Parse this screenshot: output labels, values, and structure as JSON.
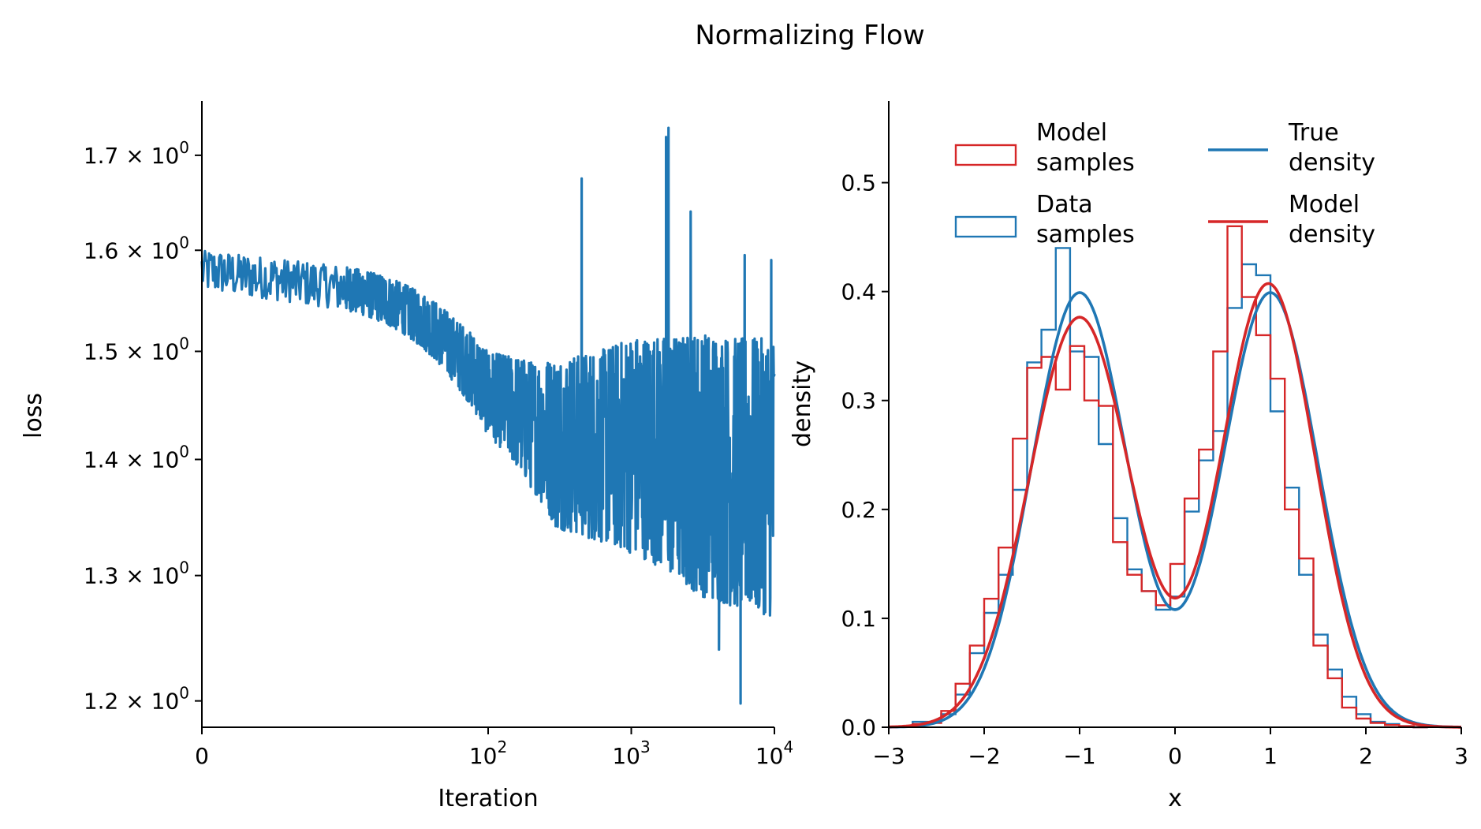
{
  "figure": {
    "title": "Normalizing Flow"
  },
  "colors": {
    "blue": "#1f77b4",
    "red": "#d62728",
    "axis": "#000000"
  },
  "chart_data": [
    {
      "type": "line",
      "title": "",
      "xlabel": "Iteration",
      "ylabel": "loss",
      "xscale": "symlog",
      "yscale": "log",
      "xlim": [
        0,
        10000
      ],
      "ylim": [
        1.18,
        1.76
      ],
      "xticks": [
        {
          "value": 0,
          "base": "0",
          "exp": ""
        },
        {
          "value": 100,
          "base": "10",
          "exp": "2"
        },
        {
          "value": 1000,
          "base": "10",
          "exp": "3"
        },
        {
          "value": 10000,
          "base": "10",
          "exp": "4"
        }
      ],
      "yticks": [
        {
          "value": 1.2,
          "label": "1.2 × 10",
          "exp": "0"
        },
        {
          "value": 1.3,
          "label": "1.3 × 10",
          "exp": "0"
        },
        {
          "value": 1.4,
          "label": "1.4 × 10",
          "exp": "0"
        },
        {
          "value": 1.5,
          "label": "1.5 × 10",
          "exp": "0"
        },
        {
          "value": 1.6,
          "label": "1.6 × 10",
          "exp": "0"
        },
        {
          "value": 1.7,
          "label": "1.7 × 10",
          "exp": "0"
        }
      ],
      "series": [
        {
          "color": "#1f77b4",
          "trend": [
            [
              0,
              1.58
            ],
            [
              10,
              1.55
            ],
            [
              30,
              1.52
            ],
            [
              60,
              1.48
            ],
            [
              100,
              1.46
            ],
            [
              200,
              1.42
            ],
            [
              500,
              1.4
            ],
            [
              1000,
              1.39
            ],
            [
              2000,
              1.37
            ],
            [
              5000,
              1.35
            ],
            [
              10000,
              1.35
            ]
          ],
          "noise_min": [
            [
              0,
              1.55
            ],
            [
              100,
              1.4
            ],
            [
              300,
              1.3
            ],
            [
              1000,
              1.28
            ],
            [
              3000,
              1.24
            ],
            [
              10000,
              1.22
            ]
          ],
          "noise_max": [
            [
              0,
              1.61
            ],
            [
              100,
              1.52
            ],
            [
              500,
              1.55
            ],
            [
              1000,
              1.58
            ],
            [
              3000,
              1.6
            ],
            [
              10000,
              1.6
            ]
          ],
          "spikes": [
            [
              450,
              1.675
            ],
            [
              1750,
              1.72
            ],
            [
              1820,
              1.73
            ],
            [
              2600,
              1.64
            ],
            [
              9500,
              1.59
            ],
            [
              6200,
              1.595
            ],
            [
              5800,
              1.198
            ],
            [
              4100,
              1.24
            ]
          ]
        }
      ]
    },
    {
      "type": "histogram+line",
      "title": "",
      "xlabel": "x",
      "ylabel": "density",
      "xlim": [
        -3,
        3
      ],
      "ylim": [
        0,
        0.575
      ],
      "xticks": [
        {
          "value": -3,
          "label": "−3"
        },
        {
          "value": -2,
          "label": "−2"
        },
        {
          "value": -1,
          "label": "−1"
        },
        {
          "value": 0,
          "label": "0"
        },
        {
          "value": 1,
          "label": "1"
        },
        {
          "value": 2,
          "label": "2"
        },
        {
          "value": 3,
          "label": "3"
        }
      ],
      "yticks": [
        {
          "value": 0,
          "label": "0.0"
        },
        {
          "value": 0.1,
          "label": "0.1"
        },
        {
          "value": 0.2,
          "label": "0.2"
        },
        {
          "value": 0.3,
          "label": "0.3"
        },
        {
          "value": 0.4,
          "label": "0.4"
        },
        {
          "value": 0.5,
          "label": "0.5"
        }
      ],
      "legend_position": "top",
      "legend": [
        {
          "kind": "hist",
          "color": "#d62728",
          "line1": "Model",
          "line2": "samples"
        },
        {
          "kind": "hist",
          "color": "#1f77b4",
          "line1": "Data",
          "line2": "samples"
        },
        {
          "kind": "line",
          "color": "#1f77b4",
          "line1": "True",
          "line2": "density"
        },
        {
          "kind": "line",
          "color": "#d62728",
          "line1": "Model",
          "line2": "density"
        }
      ],
      "bin_edges": [
        -2.75,
        -2.6,
        -2.45,
        -2.3,
        -2.15,
        -2.0,
        -1.85,
        -1.7,
        -1.55,
        -1.4,
        -1.25,
        -1.1,
        -0.95,
        -0.8,
        -0.65,
        -0.5,
        -0.35,
        -0.2,
        -0.05,
        0.1,
        0.25,
        0.4,
        0.55,
        0.7,
        0.85,
        1.0,
        1.15,
        1.3,
        1.45,
        1.6,
        1.75,
        1.9,
        2.05,
        2.2,
        2.35,
        2.5,
        2.65
      ],
      "hist_data_samples": [
        0.005,
        0.005,
        0.012,
        0.03,
        0.068,
        0.105,
        0.14,
        0.218,
        0.335,
        0.365,
        0.44,
        0.345,
        0.34,
        0.26,
        0.192,
        0.145,
        0.125,
        0.108,
        0.12,
        0.198,
        0.245,
        0.272,
        0.385,
        0.425,
        0.415,
        0.29,
        0.22,
        0.14,
        0.085,
        0.053,
        0.028,
        0.012,
        0.005,
        0.003,
        0.001,
        0.0
      ],
      "hist_model_samples": [
        0.003,
        0.004,
        0.015,
        0.04,
        0.075,
        0.118,
        0.165,
        0.265,
        0.33,
        0.34,
        0.31,
        0.35,
        0.3,
        0.295,
        0.17,
        0.14,
        0.125,
        0.112,
        0.15,
        0.21,
        0.255,
        0.345,
        0.46,
        0.395,
        0.36,
        0.32,
        0.2,
        0.155,
        0.075,
        0.045,
        0.018,
        0.008,
        0.004,
        0.002,
        0.001,
        0.0
      ],
      "true_density": {
        "color": "#1f77b4",
        "mixture": [
          {
            "mean": -1,
            "std": 0.5,
            "weight": 0.5
          },
          {
            "mean": 1,
            "std": 0.5,
            "weight": 0.5
          }
        ]
      },
      "model_density": {
        "color": "#d62728",
        "mixture": [
          {
            "mean": -1.0,
            "std": 0.53,
            "weight": 0.5
          },
          {
            "mean": 0.98,
            "std": 0.49,
            "weight": 0.5
          }
        ]
      }
    }
  ]
}
